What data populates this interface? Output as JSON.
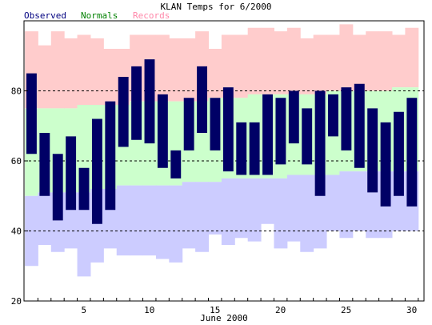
{
  "chart_data": {
    "type": "bar",
    "title": "KLAN Temps for 6/2000",
    "xlabel": "June 2000",
    "ylabel": "",
    "ylim": [
      20,
      100
    ],
    "y_ticks": [
      "20",
      "40",
      "60",
      "80"
    ],
    "x_ticks": [
      "5",
      "10",
      "15",
      "20",
      "25",
      "30"
    ],
    "gridlines": [
      40,
      60,
      80
    ],
    "legend": [
      {
        "name": "Observed",
        "color": "#000080"
      },
      {
        "name": "Normals",
        "color": "#008000"
      },
      {
        "name": "Records",
        "color": "#ff88aa"
      }
    ],
    "days": [
      1,
      2,
      3,
      4,
      5,
      6,
      7,
      8,
      9,
      10,
      11,
      12,
      13,
      14,
      15,
      16,
      17,
      18,
      19,
      20,
      21,
      22,
      23,
      24,
      25,
      26,
      27,
      28,
      29,
      30
    ],
    "observed_high": [
      85,
      68,
      62,
      67,
      58,
      72,
      77,
      84,
      87,
      89,
      79,
      63,
      78,
      87,
      78,
      81,
      71,
      71,
      79,
      78,
      80,
      75,
      80,
      79,
      81,
      82,
      75,
      71,
      74,
      78
    ],
    "observed_low": [
      62,
      50,
      43,
      46,
      46,
      42,
      46,
      64,
      66,
      65,
      58,
      55,
      63,
      68,
      63,
      57,
      56,
      56,
      56,
      59,
      65,
      59,
      50,
      67,
      63,
      58,
      51,
      47,
      50,
      47
    ],
    "normal_high": [
      75,
      75,
      75,
      75,
      76,
      76,
      76,
      76,
      77,
      77,
      77,
      77,
      77,
      77,
      78,
      78,
      78,
      79,
      79,
      79,
      79,
      79,
      79,
      80,
      80,
      80,
      80,
      80,
      81,
      81
    ],
    "normal_low": [
      50,
      51,
      51,
      51,
      51,
      52,
      52,
      53,
      53,
      53,
      53,
      53,
      54,
      54,
      54,
      55,
      55,
      55,
      55,
      55,
      56,
      56,
      56,
      56,
      57,
      57,
      57,
      57,
      57,
      57
    ],
    "record_high": [
      97,
      93,
      97,
      95,
      96,
      95,
      92,
      92,
      96,
      96,
      96,
      95,
      95,
      97,
      92,
      96,
      96,
      98,
      98,
      97,
      98,
      95,
      96,
      96,
      99,
      96,
      97,
      97,
      96,
      98
    ],
    "record_low": [
      30,
      36,
      34,
      35,
      27,
      31,
      35,
      33,
      33,
      33,
      32,
      31,
      35,
      34,
      39,
      36,
      38,
      37,
      42,
      35,
      37,
      34,
      35,
      40,
      38,
      40,
      38,
      38,
      40,
      40
    ],
    "colors": {
      "observed": "#000066",
      "normals": "#ccffcc",
      "records_high": "#ffcccc",
      "records_low": "#ccccff",
      "grid": "#000000"
    }
  }
}
